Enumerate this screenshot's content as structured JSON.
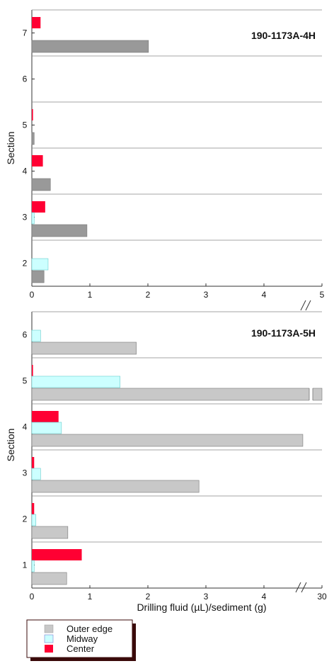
{
  "colors": {
    "outer_edge": "#c8c8c8",
    "outer_edge_dark": "#999999",
    "midway": "#ccffff",
    "center": "#ff0033",
    "frame": "#555555"
  },
  "xlabel": "Drilling fluid (µL)/sediment (g)",
  "ylabel": "Section",
  "legend": [
    "Outer edge",
    "Midway",
    "Center"
  ],
  "chart_data": [
    {
      "type": "bar",
      "orientation": "horizontal",
      "title": "190-1173A-4H",
      "ylabel": "Section",
      "categories": [
        "7",
        "6",
        "5",
        "4",
        "3",
        "2"
      ],
      "xlim": [
        0,
        5
      ],
      "xticks": [
        "0",
        "1",
        "2",
        "3",
        "4",
        "5"
      ],
      "axis_break": true,
      "series": [
        {
          "name": "Center",
          "values": [
            0.15,
            null,
            0.02,
            0.19,
            0.23,
            null
          ]
        },
        {
          "name": "Midway",
          "values": [
            null,
            null,
            null,
            null,
            0.04,
            0.28
          ]
        },
        {
          "name": "Outer edge",
          "values": [
            2.01,
            null,
            0.04,
            0.32,
            0.95,
            0.21
          ]
        }
      ]
    },
    {
      "type": "bar",
      "orientation": "horizontal",
      "title": "190-1173A-5H",
      "ylabel": "Section",
      "xlabel": "Drilling fluid (µL)/sediment (g)",
      "categories": [
        "6",
        "5",
        "4",
        "3",
        "2",
        "1"
      ],
      "xlim": [
        0,
        30
      ],
      "xticks": [
        "0",
        "1",
        "2",
        "3",
        "4",
        "30"
      ],
      "axis_break": true,
      "series": [
        {
          "name": "Center",
          "values": [
            null,
            0.02,
            0.46,
            0.04,
            0.04,
            0.86
          ]
        },
        {
          "name": "Midway",
          "values": [
            0.15,
            1.52,
            0.51,
            0.15,
            0.07,
            0.04
          ]
        },
        {
          "name": "Outer edge",
          "values": [
            1.8,
            30.0,
            4.67,
            2.88,
            0.62,
            0.6
          ]
        }
      ]
    }
  ]
}
